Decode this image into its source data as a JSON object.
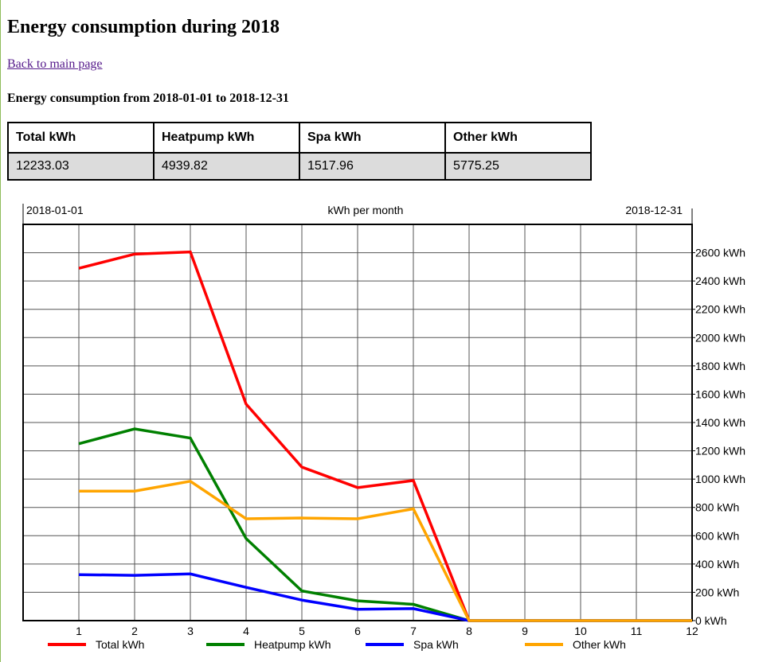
{
  "page": {
    "title": "Energy consumption during 2018",
    "back_link": "Back to main page",
    "range_heading": "Energy consumption from 2018-01-01 to 2018-12-31"
  },
  "summary": {
    "headers": [
      "Total kWh",
      "Heatpump kWh",
      "Spa kWh",
      "Other kWh"
    ],
    "values": [
      "12233.03",
      "4939.82",
      "1517.96",
      "5775.25"
    ]
  },
  "chart_data": {
    "type": "line",
    "title": "kWh per month",
    "start_label": "2018-01-01",
    "end_label": "2018-12-31",
    "x": [
      1,
      2,
      3,
      4,
      5,
      6,
      7,
      8,
      9,
      10,
      11,
      12
    ],
    "xlim": [
      0,
      12
    ],
    "ylim": [
      0,
      2800
    ],
    "yticks": [
      0,
      200,
      400,
      600,
      800,
      1000,
      1200,
      1400,
      1600,
      1800,
      2000,
      2200,
      2400,
      2600
    ],
    "ytick_suffix": " kWh",
    "grid": true,
    "legend_position": "bottom",
    "series": [
      {
        "name": "Total kWh",
        "color": "#ff0000",
        "values": [
          2490,
          2590,
          2605,
          1530,
          1085,
          940,
          990,
          0,
          0,
          0,
          0,
          0
        ]
      },
      {
        "name": "Heatpump kWh",
        "color": "#008000",
        "values": [
          1250,
          1355,
          1290,
          580,
          210,
          140,
          115,
          0,
          0,
          0,
          0,
          0
        ]
      },
      {
        "name": "Spa kWh",
        "color": "#0000ff",
        "values": [
          325,
          320,
          330,
          235,
          145,
          80,
          85,
          0,
          0,
          0,
          0,
          0
        ]
      },
      {
        "name": "Other kWh",
        "color": "#ffa500",
        "values": [
          915,
          915,
          985,
          720,
          725,
          720,
          790,
          0,
          0,
          0,
          0,
          0
        ]
      }
    ]
  }
}
